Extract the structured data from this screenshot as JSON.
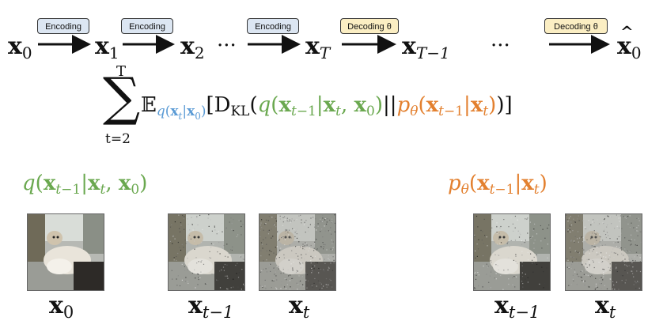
{
  "tags": {
    "enc1": "Encoding",
    "enc2": "Encoding",
    "enc3": "Encoding",
    "dec1": "Decoding θ",
    "dec2": "Decoding θ"
  },
  "chain": {
    "x": "x",
    "sub0": "0",
    "sub1": "1",
    "sub2": "2",
    "subT": "T",
    "subTm1": "T−1",
    "dots1": "···",
    "dots2": "···"
  },
  "equation": {
    "sum_top": "T",
    "sum_bottom": "t=2",
    "sigma": "∑",
    "expect": "𝔼",
    "expect_sub": "q(x_t|x_0)",
    "dkl": "D",
    "dkl_sub": "KL",
    "q_term": "q(x_{t−1}|x_t, x_0)",
    "sep": "||",
    "p_term": "p_θ(x_{t−1}|x_t)"
  },
  "sections": {
    "left_title": "q(x_{t−1}|x_t, x_0)",
    "right_title": "p_θ(x_{t−1}|x_t)"
  },
  "images": {
    "labels": {
      "img1": "0",
      "img2": "t−1",
      "img3": "t",
      "img4": "t−1",
      "img5": "t"
    },
    "noise_levels": [
      0.0,
      0.35,
      0.7,
      0.35,
      0.7
    ]
  },
  "colors": {
    "encoding_fill": "#dce6f2",
    "decoding_fill": "#fbeec3",
    "q_green": "#6aa84f",
    "p_orange": "#e3802f",
    "expect_blue": "#5b9bd5"
  }
}
